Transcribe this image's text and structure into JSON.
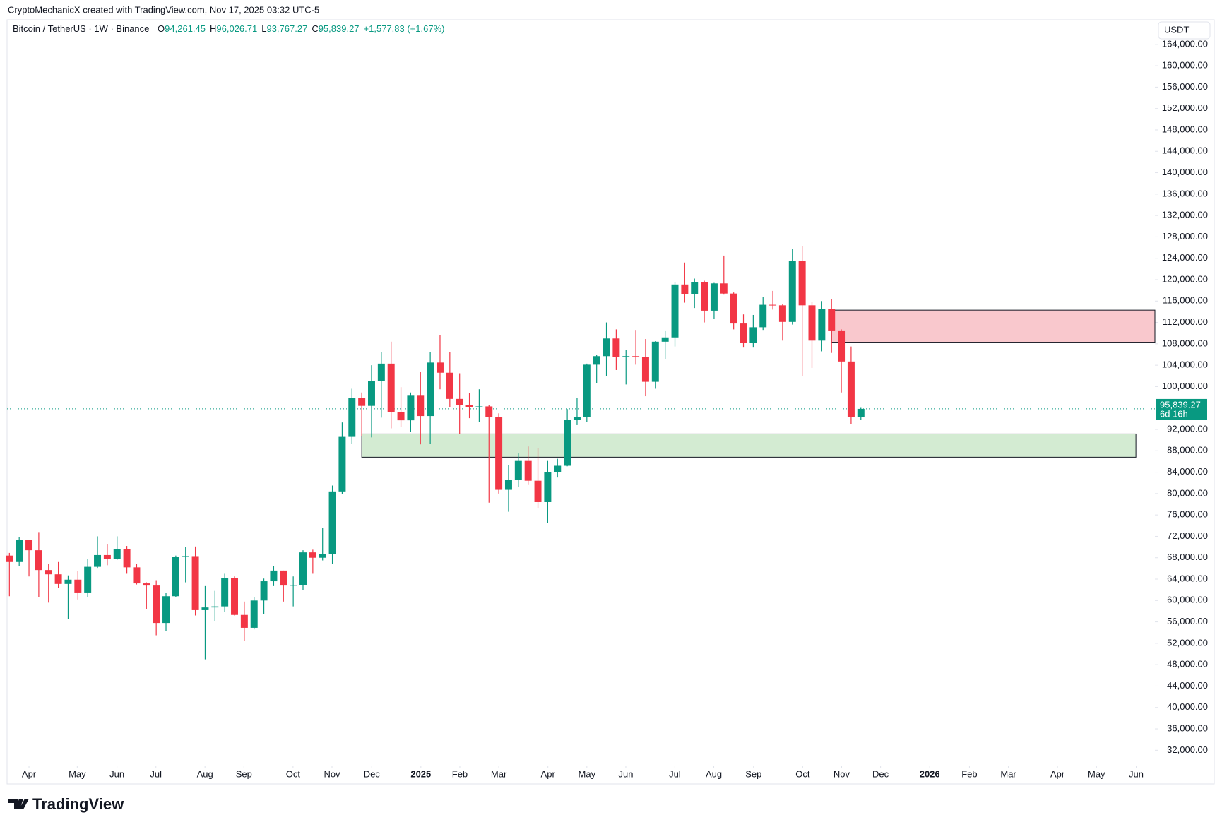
{
  "chart_data": {
    "type": "candlestick",
    "watermark": "CryptoMechanicX created with TradingView.com, Nov 17, 2025 03:32 UTC-5",
    "symbol": "Bitcoin / TetherUS · 1W · Binance",
    "ohlc_legend": [
      {
        "label": "O",
        "value": "94,261.45"
      },
      {
        "label": "H",
        "value": "96,026.71"
      },
      {
        "label": "L",
        "value": "93,767.27"
      },
      {
        "label": "C",
        "value": "95,839.27"
      }
    ],
    "change": "+1,577.83 (+1.67%)",
    "currency": "USDT",
    "brand": "TradingView",
    "up_color": "#089981",
    "down_color": "#f23645",
    "candles": [
      [
        68400,
        68900,
        60800,
        67200
      ],
      [
        67200,
        71800,
        66500,
        71300
      ],
      [
        71300,
        71300,
        64500,
        69400
      ],
      [
        69400,
        72800,
        60700,
        65700
      ],
      [
        65700,
        66900,
        59600,
        64900
      ],
      [
        64900,
        67200,
        62400,
        63100
      ],
      [
        63100,
        64700,
        56500,
        63900
      ],
      [
        63900,
        65500,
        60200,
        61500
      ],
      [
        61500,
        67700,
        60700,
        66300
      ],
      [
        66300,
        72000,
        66100,
        68500
      ],
      [
        68500,
        70600,
        66600,
        67800
      ],
      [
        67800,
        72000,
        67600,
        69600
      ],
      [
        69600,
        70200,
        65000,
        66200
      ],
      [
        66200,
        66900,
        63000,
        63200
      ],
      [
        63200,
        63400,
        58400,
        62800
      ],
      [
        62800,
        63800,
        53500,
        55800
      ],
      [
        55800,
        61400,
        54300,
        60800
      ],
      [
        60800,
        68400,
        60600,
        68200
      ],
      [
        68200,
        70000,
        63400,
        68300
      ],
      [
        68300,
        70100,
        57200,
        58200
      ],
      [
        58200,
        62700,
        49000,
        58700
      ],
      [
        58700,
        61800,
        56100,
        58900
      ],
      [
        58900,
        65000,
        57800,
        64200
      ],
      [
        64200,
        64500,
        57200,
        57300
      ],
      [
        57300,
        59800,
        52500,
        54900
      ],
      [
        54900,
        60700,
        54600,
        60000
      ],
      [
        60000,
        64100,
        57500,
        63600
      ],
      [
        63600,
        66500,
        62700,
        65600
      ],
      [
        65600,
        65600,
        59800,
        62800
      ],
      [
        62800,
        64500,
        58900,
        62900
      ],
      [
        62900,
        69400,
        62000,
        69000
      ],
      [
        69000,
        69500,
        65000,
        68000
      ],
      [
        68000,
        73600,
        67500,
        68700
      ],
      [
        68700,
        81500,
        66800,
        80400
      ],
      [
        80400,
        93300,
        79900,
        90600
      ],
      [
        90600,
        99600,
        89300,
        97900
      ],
      [
        97900,
        98900,
        90800,
        96400
      ],
      [
        96400,
        104000,
        90500,
        101100
      ],
      [
        101100,
        106500,
        94200,
        104300
      ],
      [
        104300,
        108400,
        92200,
        95200
      ],
      [
        95200,
        99900,
        92500,
        93700
      ],
      [
        93700,
        98900,
        91500,
        98300
      ],
      [
        98300,
        102700,
        89200,
        94500
      ],
      [
        94500,
        106400,
        89300,
        104500
      ],
      [
        104500,
        109600,
        99500,
        102600
      ],
      [
        102600,
        106500,
        96200,
        97700
      ],
      [
        97700,
        102500,
        91200,
        96500
      ],
      [
        96500,
        98800,
        94100,
        96100
      ],
      [
        96100,
        99500,
        93400,
        96300
      ],
      [
        96300,
        96500,
        78300,
        94300
      ],
      [
        94300,
        95000,
        80000,
        80700
      ],
      [
        80700,
        85300,
        76600,
        82600
      ],
      [
        82600,
        87500,
        81200,
        86100
      ],
      [
        86100,
        88800,
        81600,
        82400
      ],
      [
        82400,
        88500,
        77200,
        78400
      ],
      [
        78400,
        86100,
        74500,
        84000
      ],
      [
        84000,
        86500,
        83000,
        85200
      ],
      [
        85200,
        95800,
        85100,
        93800
      ],
      [
        93800,
        97900,
        92800,
        94300
      ],
      [
        94300,
        104300,
        93400,
        104100
      ],
      [
        104100,
        106000,
        100700,
        105700
      ],
      [
        105700,
        112000,
        102000,
        109000
      ],
      [
        109000,
        110700,
        103100,
        105600
      ],
      [
        105600,
        106800,
        100400,
        105700
      ],
      [
        105700,
        110600,
        104100,
        105600
      ],
      [
        105600,
        108900,
        98200,
        100900
      ],
      [
        100900,
        108500,
        99600,
        108400
      ],
      [
        108400,
        110500,
        105100,
        109200
      ],
      [
        109200,
        119500,
        107500,
        119100
      ],
      [
        119100,
        123200,
        115700,
        117300
      ],
      [
        117300,
        120200,
        114700,
        119500
      ],
      [
        119500,
        119800,
        112000,
        114200
      ],
      [
        114200,
        119400,
        112600,
        119300
      ],
      [
        119300,
        124500,
        117200,
        117400
      ],
      [
        117400,
        117600,
        110700,
        111800
      ],
      [
        111800,
        113500,
        107300,
        108200
      ],
      [
        108200,
        113400,
        107300,
        111100
      ],
      [
        111100,
        116800,
        110600,
        115300
      ],
      [
        115300,
        117900,
        114400,
        115200
      ],
      [
        115200,
        115400,
        108600,
        112100
      ],
      [
        112100,
        125700,
        111600,
        123500
      ],
      [
        123500,
        126200,
        102000,
        115200
      ],
      [
        115200,
        115900,
        103500,
        108600
      ],
      [
        108600,
        116000,
        106600,
        114500
      ],
      [
        114500,
        116400,
        106300,
        110500
      ],
      [
        110500,
        110700,
        98900,
        104700
      ],
      [
        104700,
        107500,
        93000,
        94260
      ],
      [
        94261.45,
        96026.71,
        93767.27,
        95839.27
      ]
    ],
    "zones": [
      {
        "xrange": [
          84,
          117.04
        ],
        "yrange": [
          108300,
          114300
        ],
        "color": "#f9c8cd"
      },
      {
        "xrange": [
          36,
          115.1
        ],
        "yrange": [
          86800,
          91150
        ],
        "color": "#d3ebd2"
      }
    ],
    "last_price": {
      "value": 95839.27,
      "label": "95,839.27",
      "countdown": "6d 16h"
    },
    "xlim": [
      -0.24,
      117.04
    ],
    "xticks": [
      {
        "value": 2,
        "label": "Apr"
      },
      {
        "value": 6.93,
        "label": "May"
      },
      {
        "value": 10.99,
        "label": "Jun"
      },
      {
        "value": 14.97,
        "label": "Jul"
      },
      {
        "value": 19.98,
        "label": "Aug"
      },
      {
        "value": 23.96,
        "label": "Sep"
      },
      {
        "value": 28.98,
        "label": "Oct"
      },
      {
        "value": 32.96,
        "label": "Nov"
      },
      {
        "value": 37.02,
        "label": "Dec"
      },
      {
        "value": 42.04,
        "label": "2025"
      },
      {
        "value": 46.02,
        "label": "Feb"
      },
      {
        "value": 50,
        "label": "Mar"
      },
      {
        "value": 55.02,
        "label": "Apr"
      },
      {
        "value": 59,
        "label": "May"
      },
      {
        "value": 62.98,
        "label": "Jun"
      },
      {
        "value": 67.99,
        "label": "Jul"
      },
      {
        "value": 71.97,
        "label": "Aug"
      },
      {
        "value": 76.03,
        "label": "Sep"
      },
      {
        "value": 81.05,
        "label": "Oct"
      },
      {
        "value": 85.03,
        "label": "Nov"
      },
      {
        "value": 89.01,
        "label": "Dec"
      },
      {
        "value": 94.03,
        "label": "2026"
      },
      {
        "value": 98.09,
        "label": "Feb"
      },
      {
        "value": 102.07,
        "label": "Mar"
      },
      {
        "value": 107.09,
        "label": "Apr"
      },
      {
        "value": 111.07,
        "label": "May"
      },
      {
        "value": 115.13,
        "label": "Jun"
      }
    ],
    "ylim": [
      29400,
      168600
    ],
    "yticks": [
      {
        "value": 32000,
        "label": "32,000.00"
      },
      {
        "value": 36000,
        "label": "36,000.00"
      },
      {
        "value": 40000,
        "label": "40,000.00"
      },
      {
        "value": 44000,
        "label": "44,000.00"
      },
      {
        "value": 48000,
        "label": "48,000.00"
      },
      {
        "value": 52000,
        "label": "52,000.00"
      },
      {
        "value": 56000,
        "label": "56,000.00"
      },
      {
        "value": 60000,
        "label": "60,000.00"
      },
      {
        "value": 64000,
        "label": "64,000.00"
      },
      {
        "value": 68000,
        "label": "68,000.00"
      },
      {
        "value": 72000,
        "label": "72,000.00"
      },
      {
        "value": 76000,
        "label": "76,000.00"
      },
      {
        "value": 80000,
        "label": "80,000.00"
      },
      {
        "value": 84000,
        "label": "84,000.00"
      },
      {
        "value": 88000,
        "label": "88,000.00"
      },
      {
        "value": 92000,
        "label": "92,000.00"
      },
      {
        "value": 100000,
        "label": "100,000.00"
      },
      {
        "value": 104000,
        "label": "104,000.00"
      },
      {
        "value": 108000,
        "label": "108,000.00"
      },
      {
        "value": 112000,
        "label": "112,000.00"
      },
      {
        "value": 116000,
        "label": "116,000.00"
      },
      {
        "value": 120000,
        "label": "120,000.00"
      },
      {
        "value": 124000,
        "label": "124,000.00"
      },
      {
        "value": 128000,
        "label": "128,000.00"
      },
      {
        "value": 132000,
        "label": "132,000.00"
      },
      {
        "value": 136000,
        "label": "136,000.00"
      },
      {
        "value": 140000,
        "label": "140,000.00"
      },
      {
        "value": 144000,
        "label": "144,000.00"
      },
      {
        "value": 148000,
        "label": "148,000.00"
      },
      {
        "value": 152000,
        "label": "152,000.00"
      },
      {
        "value": 156000,
        "label": "156,000.00"
      },
      {
        "value": 160000,
        "label": "160,000.00"
      },
      {
        "value": 164000,
        "label": "164,000.00"
      }
    ]
  }
}
